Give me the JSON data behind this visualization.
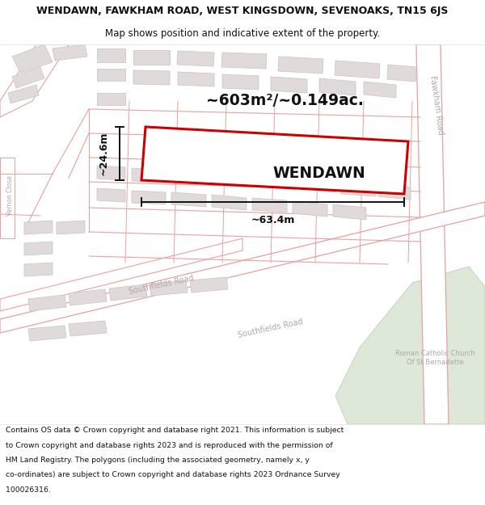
{
  "title_line1": "WENDAWN, FAWKHAM ROAD, WEST KINGSDOWN, SEVENOAKS, TN15 6JS",
  "title_line2": "Map shows position and indicative extent of the property.",
  "footer_lines": [
    "Contains OS data © Crown copyright and database right 2021. This information is subject",
    "to Crown copyright and database rights 2023 and is reproduced with the permission of",
    "HM Land Registry. The polygons (including the associated geometry, namely x, y",
    "co-ordinates) are subject to Crown copyright and database rights 2023 Ordnance Survey",
    "100026316."
  ],
  "area_label": "~603m²/~0.149ac.",
  "width_label": "~63.4m",
  "height_label": "~24.6m",
  "property_label": "WENDAWN",
  "map_bg": "#f8f6f6",
  "road_line_color": "#e8a0a0",
  "road_fill_color": "#ffffff",
  "building_fill": "#e0dada",
  "building_edge": "#d0c8c8",
  "green_fill": "#dde8d8",
  "green_edge": "#c8d8c0",
  "property_color": "#cc0000",
  "dim_color": "#111111",
  "road_label_color": "#b0a8a8",
  "text_color": "#111111",
  "title_fontsize": 9.0,
  "subtitle_fontsize": 8.5,
  "footer_fontsize": 6.7,
  "area_fontsize": 13.5,
  "prop_fontsize": 13.5,
  "dim_fontsize": 9.0,
  "road_text_fontsize": 7.0
}
